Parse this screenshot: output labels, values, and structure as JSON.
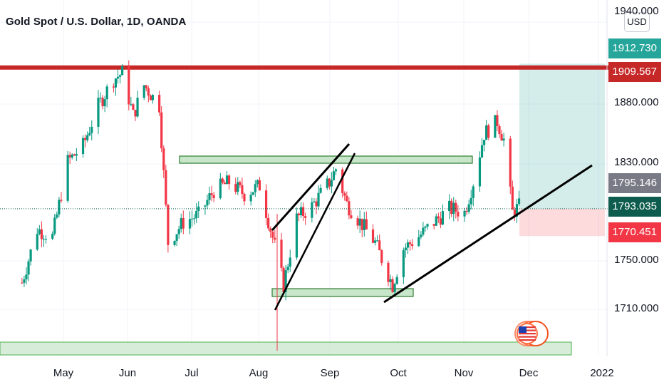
{
  "header": {
    "title": "Gold Spot / U.S. Dollar, 1D, OANDA",
    "currency_button": "USD"
  },
  "price_tags": [
    {
      "label": "1912.730",
      "color": "#26a69a"
    },
    {
      "label": "1909.567",
      "color": "#c62828"
    },
    {
      "label": "1795.146",
      "color": "#787b86"
    },
    {
      "label": "1793.035",
      "color": "#0d5c4e"
    },
    {
      "label": "1770.451",
      "color": "#f23645"
    }
  ],
  "chart_data": {
    "type": "candlestick",
    "symbol": "Gold Spot / U.S. Dollar",
    "interval": "1D",
    "exchange": "OANDA",
    "y_ticks": [
      "1940.000",
      "1880.000",
      "1830.000",
      "1750.000",
      "1710.000"
    ],
    "x_ticks": [
      "May",
      "Jun",
      "Jul",
      "Aug",
      "Sep",
      "Oct",
      "Nov",
      "Dec",
      "2022"
    ],
    "ylim": [
      1680,
      1955
    ],
    "close_path": [
      [
        "2021-04-12",
        1732
      ],
      [
        "2021-04-19",
        1776
      ],
      [
        "2021-04-26",
        1770
      ],
      [
        "2021-05-03",
        1832
      ],
      [
        "2021-05-10",
        1845
      ],
      [
        "2021-05-17",
        1878
      ],
      [
        "2021-05-24",
        1900
      ],
      [
        "2021-05-28",
        1905
      ],
      [
        "2021-06-02",
        1870
      ],
      [
        "2021-06-07",
        1895
      ],
      [
        "2021-06-14",
        1878
      ],
      [
        "2021-06-18",
        1765
      ],
      [
        "2021-06-25",
        1782
      ],
      [
        "2021-07-02",
        1788
      ],
      [
        "2021-07-09",
        1808
      ],
      [
        "2021-07-16",
        1815
      ],
      [
        "2021-07-23",
        1805
      ],
      [
        "2021-07-30",
        1812
      ],
      [
        "2021-08-06",
        1762
      ],
      [
        "2021-08-10",
        1730
      ],
      [
        "2021-08-16",
        1785
      ],
      [
        "2021-08-23",
        1795
      ],
      [
        "2021-08-31",
        1815
      ],
      [
        "2021-09-03",
        1826
      ],
      [
        "2021-09-08",
        1797
      ],
      [
        "2021-09-15",
        1780
      ],
      [
        "2021-09-21",
        1765
      ],
      [
        "2021-09-29",
        1730
      ],
      [
        "2021-10-04",
        1760
      ],
      [
        "2021-10-11",
        1770
      ],
      [
        "2021-10-18",
        1782
      ],
      [
        "2021-10-25",
        1793
      ],
      [
        "2021-11-01",
        1790
      ],
      [
        "2021-11-05",
        1815
      ],
      [
        "2021-11-10",
        1855
      ],
      [
        "2021-11-16",
        1865
      ],
      [
        "2021-11-19",
        1850
      ],
      [
        "2021-11-23",
        1790
      ],
      [
        "2021-11-26",
        1795
      ]
    ],
    "horizontal_levels": [
      1909.567
    ],
    "long_position": {
      "entry": 1793.035,
      "target": 1912.73,
      "stop": 1770.451,
      "last_price": 1795.146
    }
  }
}
